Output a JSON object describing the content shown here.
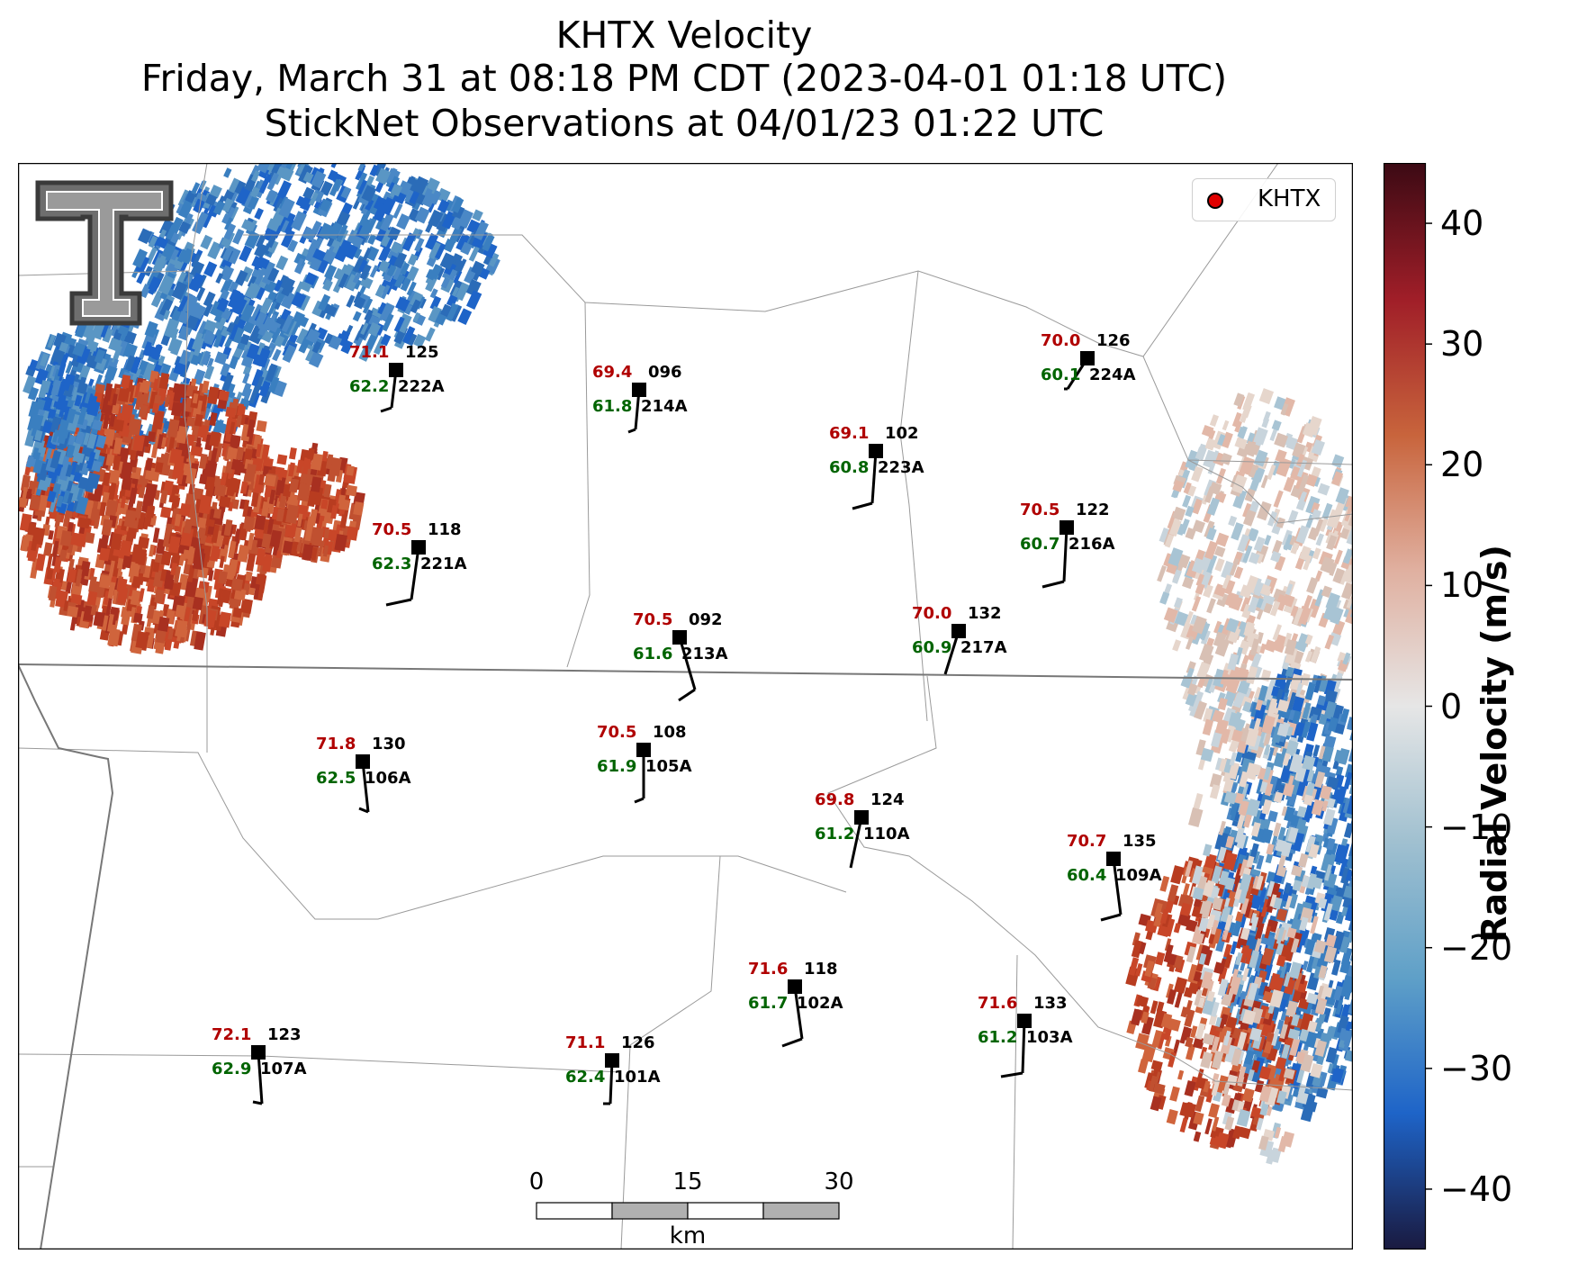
{
  "title": {
    "line1": "KHTX Velocity",
    "line2": "Friday, March 31 at 08:18 PM CDT (2023-04-01 01:18 UTC)",
    "line3": "StickNet Observations at 04/01/23 01:22 UTC"
  },
  "legend": {
    "label": "KHTX",
    "marker_color": "#e00000"
  },
  "colorbar": {
    "label": "Radial Velocity (m/s)",
    "ticks": [
      "40",
      "30",
      "20",
      "10",
      "0",
      "−10",
      "−20",
      "−30",
      "−40"
    ],
    "min": -45,
    "max": 45,
    "colors": [
      "#1a1a40",
      "#1e64c8",
      "#5fa0c8",
      "#a0c0d0",
      "#e6e6e6",
      "#e0b0a0",
      "#c8643c",
      "#a01e28",
      "#3c0a14"
    ]
  },
  "scalebar": {
    "labels": [
      "0",
      "15",
      "30"
    ],
    "unit": "km"
  },
  "logo": {
    "name": "texas-tech-logo"
  },
  "stations": [
    {
      "id": "222A",
      "temp": "71.1",
      "dew": "62.2",
      "dir": "125"
    },
    {
      "id": "214A",
      "temp": "69.4",
      "dew": "61.8",
      "dir": "096"
    },
    {
      "id": "224A",
      "temp": "70.0",
      "dew": "60.1",
      "dir": "126"
    },
    {
      "id": "223A",
      "temp": "69.1",
      "dew": "60.8",
      "dir": "102"
    },
    {
      "id": "221A",
      "temp": "70.5",
      "dew": "62.3",
      "dir": "118"
    },
    {
      "id": "216A",
      "temp": "70.5",
      "dew": "60.7",
      "dir": "122"
    },
    {
      "id": "213A",
      "temp": "70.5",
      "dew": "61.6",
      "dir": "092"
    },
    {
      "id": "217A",
      "temp": "70.0",
      "dew": "60.9",
      "dir": "132"
    },
    {
      "id": "106A",
      "temp": "71.8",
      "dew": "62.5",
      "dir": "130"
    },
    {
      "id": "105A",
      "temp": "70.5",
      "dew": "61.9",
      "dir": "108"
    },
    {
      "id": "110A",
      "temp": "69.8",
      "dew": "61.2",
      "dir": "124"
    },
    {
      "id": "109A",
      "temp": "70.7",
      "dew": "60.4",
      "dir": "135"
    },
    {
      "id": "102A",
      "temp": "71.6",
      "dew": "61.7",
      "dir": "118"
    },
    {
      "id": "103A",
      "temp": "71.6",
      "dew": "61.2",
      "dir": "133"
    },
    {
      "id": "107A",
      "temp": "72.1",
      "dew": "62.9",
      "dir": "123"
    },
    {
      "id": "101A",
      "temp": "71.1",
      "dew": "62.4",
      "dir": "126"
    }
  ]
}
